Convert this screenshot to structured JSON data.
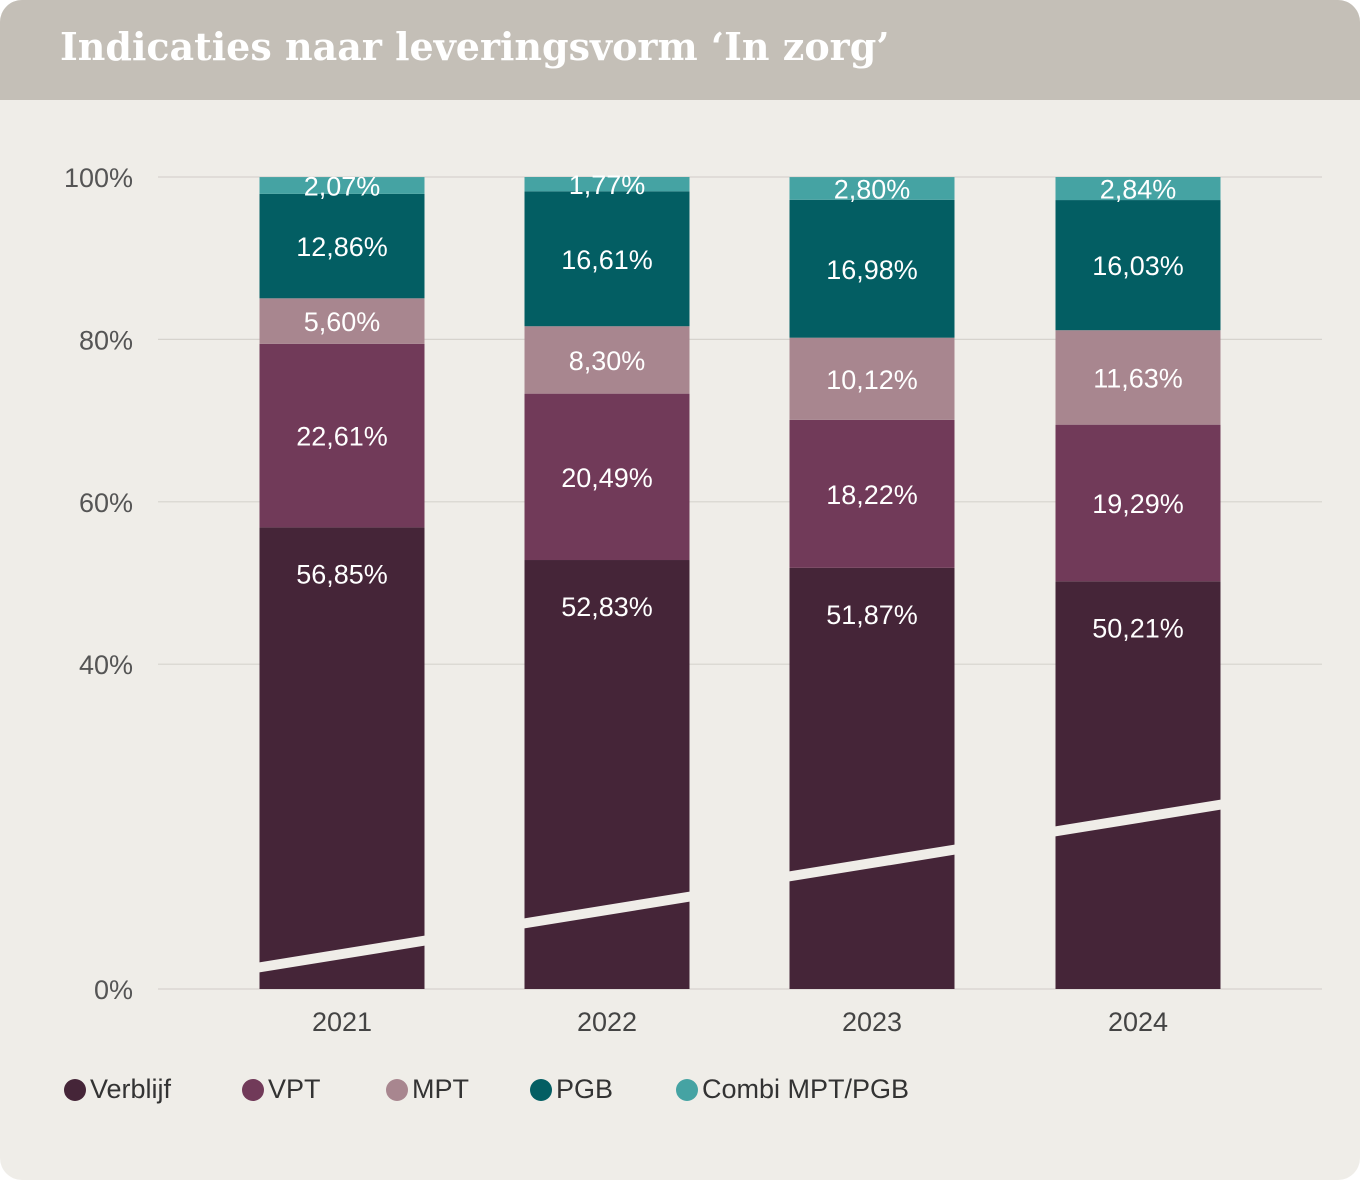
{
  "header": {
    "title": "Indicaties naar leveringsvorm ‘In zorg’"
  },
  "chart_data": {
    "type": "bar",
    "stacked": true,
    "title": "Indicaties naar leveringsvorm ‘In zorg’",
    "categories": [
      "2021",
      "2022",
      "2023",
      "2024"
    ],
    "yticks": [
      "0%",
      "40%",
      "60%",
      "80%",
      "100%"
    ],
    "ytick_values": [
      0,
      40,
      60,
      80,
      100
    ],
    "ylim": [
      0,
      100
    ],
    "axis_break": true,
    "grid": true,
    "legend_position": "bottom",
    "series": [
      {
        "name": "Verblijf",
        "color": "#452538",
        "values": [
          56.85,
          52.83,
          51.87,
          50.21
        ],
        "labels": [
          "56,85%",
          "52,83%",
          "51,87%",
          "50,21%"
        ]
      },
      {
        "name": "VPT",
        "color": "#713a59",
        "values": [
          22.61,
          20.49,
          18.22,
          19.29
        ],
        "labels": [
          "22,61%",
          "20,49%",
          "18,22%",
          "19,29%"
        ]
      },
      {
        "name": "MPT",
        "color": "#a8868f",
        "values": [
          5.6,
          8.3,
          10.12,
          11.63
        ],
        "labels": [
          "5,60%",
          "8,30%",
          "10,12%",
          "11,63%"
        ]
      },
      {
        "name": "PGB",
        "color": "#035e63",
        "values": [
          12.86,
          16.61,
          16.98,
          16.03
        ],
        "labels": [
          "12,86%",
          "16,61%",
          "16,98%",
          "16,03%"
        ]
      },
      {
        "name": "Combi MPT/PGB",
        "color": "#45a3a3",
        "values": [
          2.07,
          1.77,
          2.8,
          2.84
        ],
        "labels": [
          "2,07%",
          "1,77%",
          "2,80%",
          "2,84%"
        ]
      }
    ]
  }
}
